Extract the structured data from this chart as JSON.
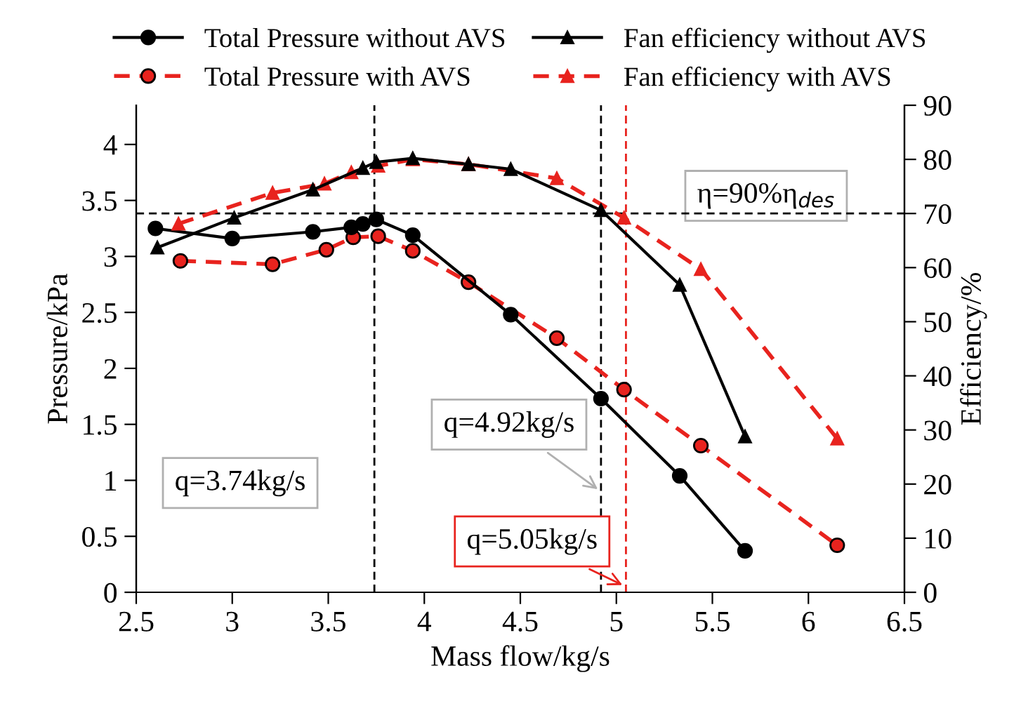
{
  "chart_data": {
    "type": "line",
    "xlabel": "Mass flow/kg/s",
    "ylabel": "Pressure/kPa",
    "y2label": "Efficiency/%",
    "xlim": [
      2.5,
      6.5
    ],
    "xticks": [
      2.5,
      3,
      3.5,
      4,
      4.5,
      5,
      5.5,
      6,
      6.5
    ],
    "ylim": [
      0,
      4.35
    ],
    "yticks": [
      0,
      0.5,
      1,
      1.5,
      2,
      2.5,
      3,
      3.5,
      4
    ],
    "y2lim": [
      0,
      90
    ],
    "y2ticks": [
      0,
      10,
      20,
      30,
      40,
      50,
      60,
      70,
      80,
      90
    ],
    "grid": false,
    "legend": "top",
    "series": [
      {
        "name": "Total Pressure without AVS",
        "color": "#000000",
        "marker": "circle",
        "line_style": "solid",
        "x": [
          2.6,
          3.0,
          3.42,
          3.62,
          3.68,
          3.75,
          3.94,
          4.45,
          4.92,
          5.33,
          5.67
        ],
        "values": [
          3.25,
          3.16,
          3.22,
          3.26,
          3.29,
          3.33,
          3.19,
          2.48,
          1.73,
          1.04,
          0.37
        ]
      },
      {
        "name": "Total Pressure with AVS",
        "color": "#e8231e",
        "marker": "circle",
        "line_style": "dashed",
        "x": [
          2.73,
          3.21,
          3.49,
          3.63,
          3.76,
          3.94,
          4.23,
          4.69,
          5.04,
          5.44,
          6.15
        ],
        "values": [
          2.96,
          2.93,
          3.06,
          3.17,
          3.18,
          3.05,
          2.77,
          2.27,
          1.81,
          1.31,
          0.42
        ]
      },
      {
        "name": "Fan efficiency without AVS",
        "color": "#000000",
        "marker": "triangle",
        "line_style": "solid",
        "axis": "y2",
        "x": [
          2.61,
          3.01,
          3.42,
          3.68,
          3.75,
          3.94,
          4.23,
          4.45,
          4.92,
          5.33,
          5.67
        ],
        "values": [
          63.7,
          69.2,
          74.4,
          78.4,
          79.5,
          80.2,
          79.1,
          78.2,
          70.6,
          56.8,
          28.8
        ]
      },
      {
        "name": "Fan efficiency with AVS",
        "color": "#e8231e",
        "marker": "triangle",
        "line_style": "dashed",
        "axis": "y2",
        "x": [
          2.72,
          3.21,
          3.48,
          3.62,
          3.76,
          3.94,
          4.23,
          4.69,
          5.04,
          5.44,
          6.15
        ],
        "values": [
          68.1,
          73.8,
          75.5,
          77.6,
          78.8,
          80.0,
          79.1,
          76.5,
          69.2,
          59.7,
          28.4
        ]
      }
    ],
    "ref_lines": [
      {
        "axis": "x",
        "value": 3.74,
        "color": "#000000",
        "line_style": "dashed"
      },
      {
        "axis": "x",
        "value": 4.92,
        "color": "#000000",
        "line_style": "dashed"
      },
      {
        "axis": "x",
        "value": 5.05,
        "color": "#e8231e",
        "line_style": "dashed"
      },
      {
        "axis": "y2",
        "value": 70,
        "color": "#000000",
        "line_style": "dashed"
      }
    ],
    "annotations": [
      "q=3.74kg/s",
      {
        "text": "q=4.92kg/s",
        "x": 4.92,
        "y": 0.9
      },
      {
        "text": "q=5.05kg/s",
        "x": 5.05,
        "y": 0.05
      },
      "η=90%η$_{des}$"
    ]
  }
}
